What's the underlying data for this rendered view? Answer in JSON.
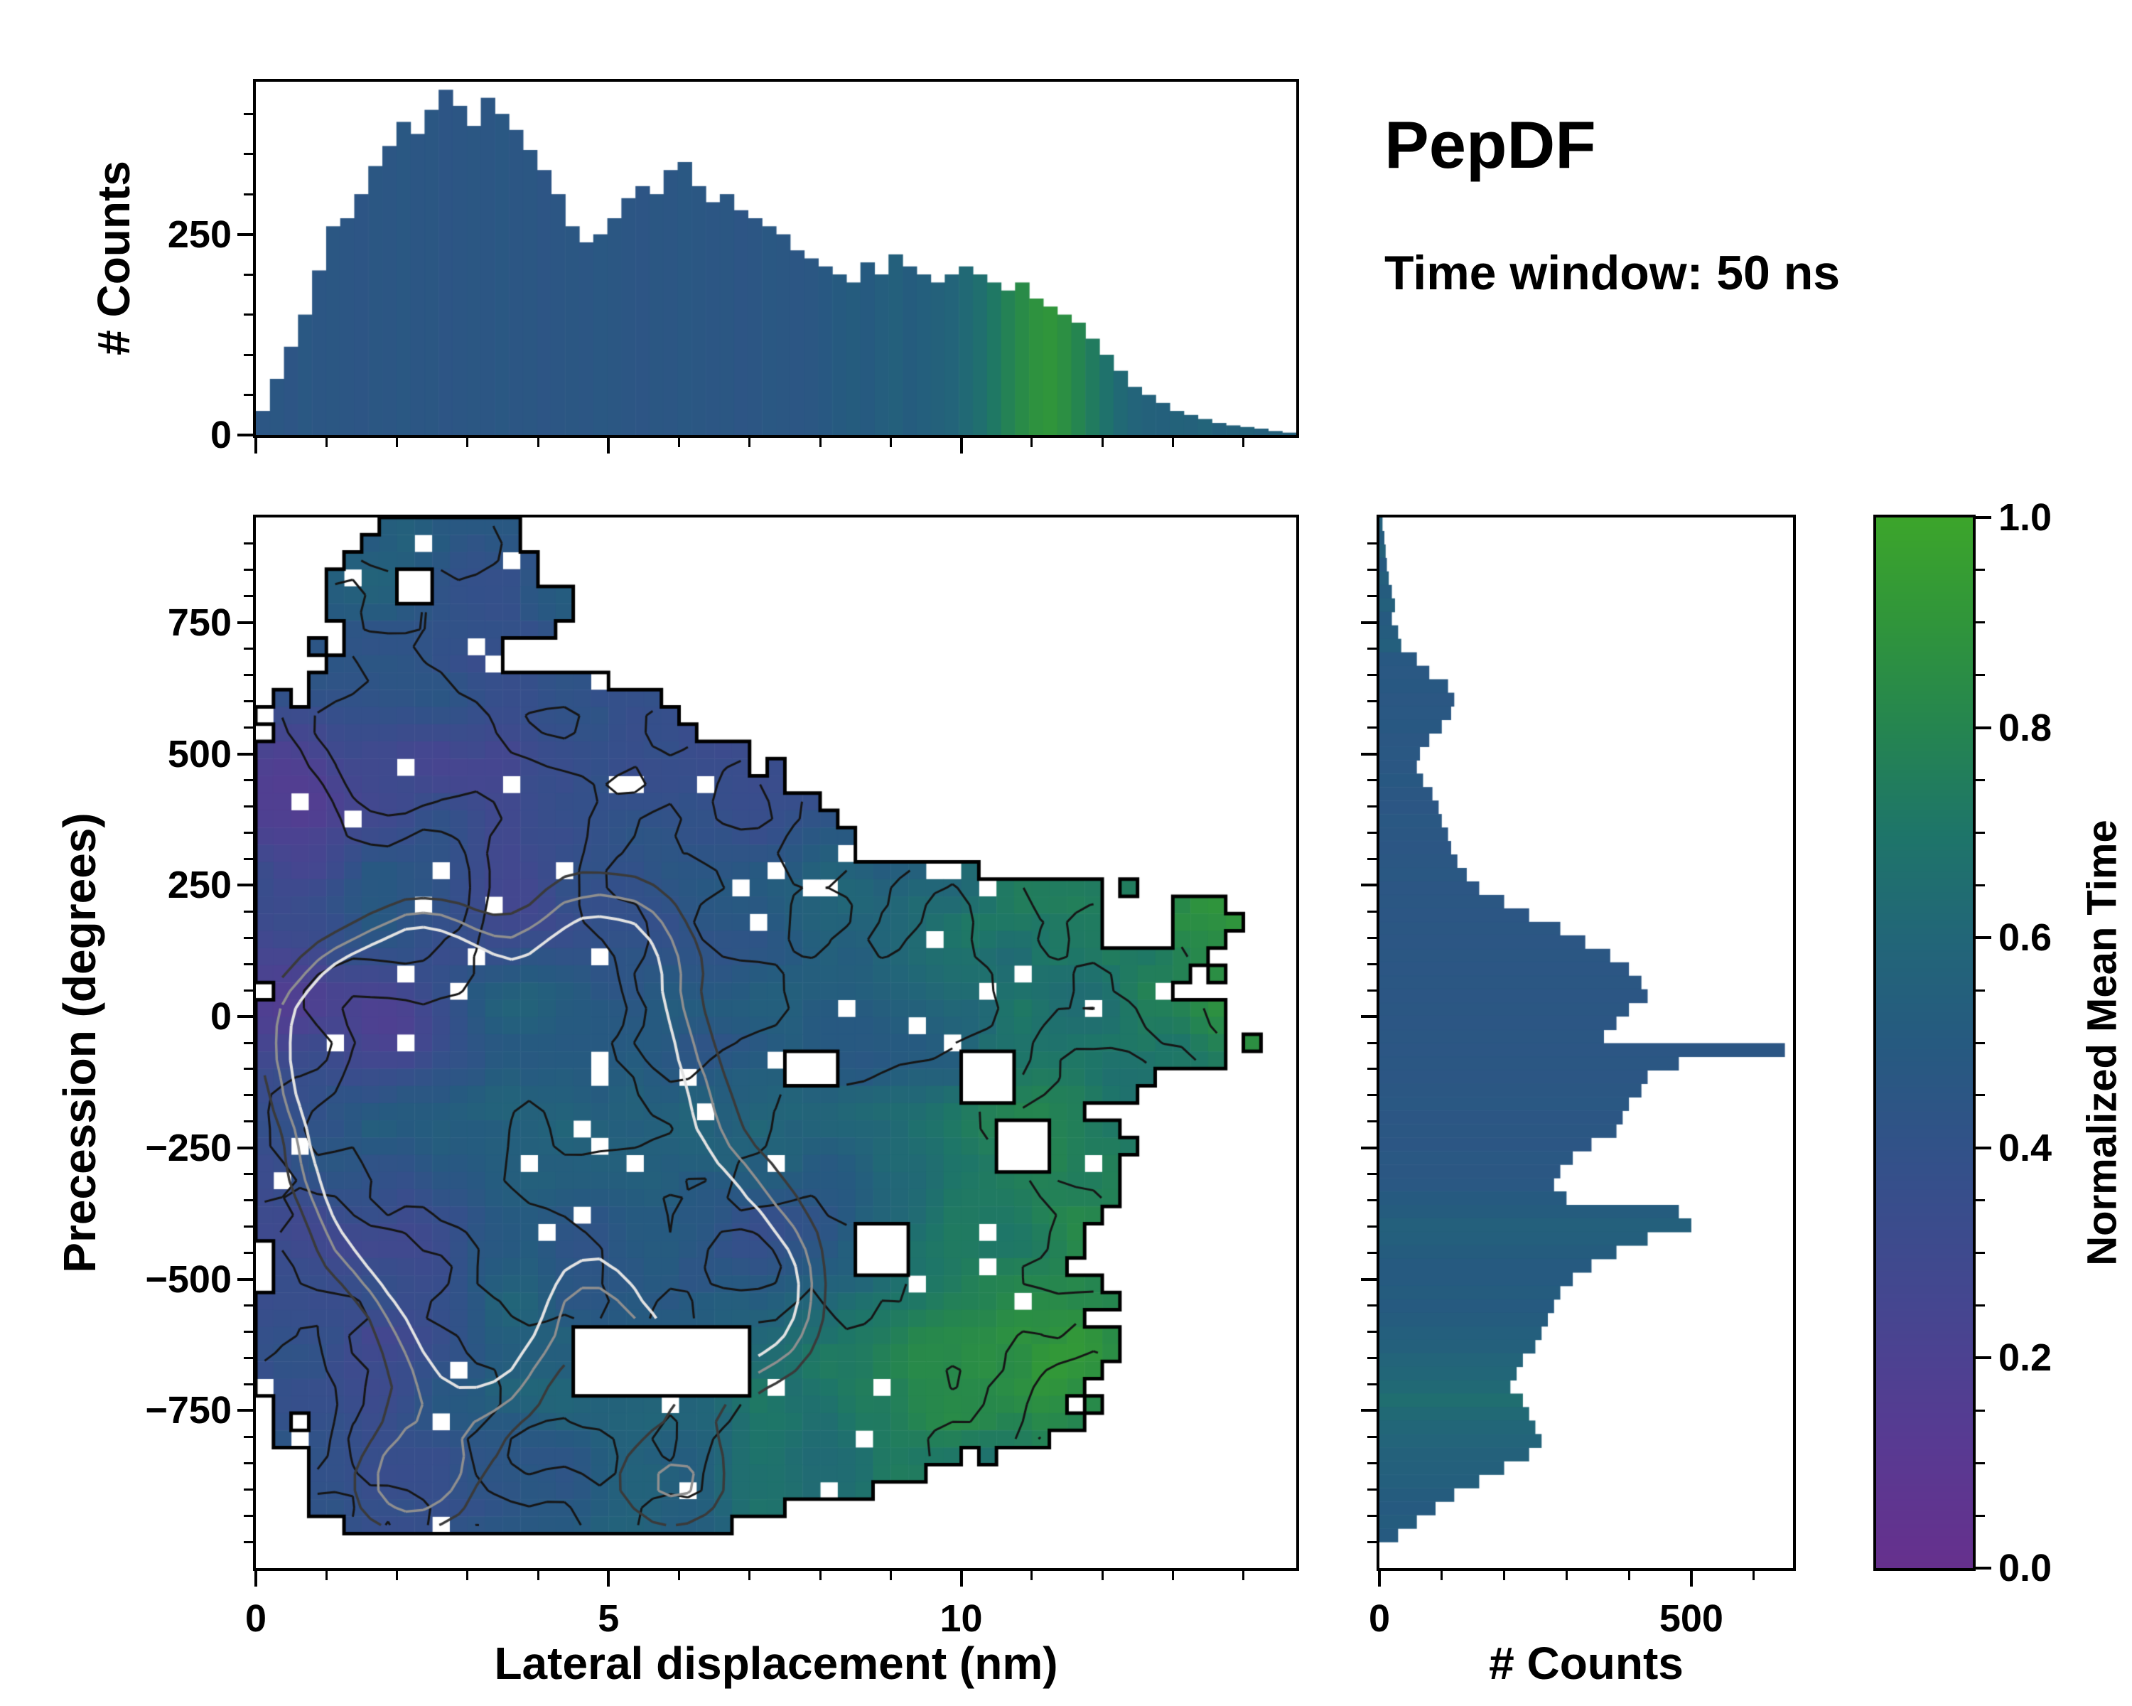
{
  "title": {
    "main": "PepDF",
    "subtitle": "Time window: 50 ns"
  },
  "colors": {
    "background": "#ffffff",
    "axis": "#000000",
    "colormap_stops": [
      {
        "t": 0.0,
        "color": "#66308d"
      },
      {
        "t": 0.12,
        "color": "#583a92"
      },
      {
        "t": 0.25,
        "color": "#454690"
      },
      {
        "t": 0.38,
        "color": "#34508a"
      },
      {
        "t": 0.5,
        "color": "#265a80"
      },
      {
        "t": 0.6,
        "color": "#226678"
      },
      {
        "t": 0.7,
        "color": "#1e7569"
      },
      {
        "t": 0.8,
        "color": "#258550"
      },
      {
        "t": 0.9,
        "color": "#30953b"
      },
      {
        "t": 1.0,
        "color": "#3ca52b"
      }
    ]
  },
  "chart_data": [
    {
      "id": "top_histogram",
      "type": "bar",
      "xlabel": "",
      "ylabel": "# Counts",
      "x_range": [
        0,
        14.75
      ],
      "y_range": [
        0,
        440
      ],
      "yticks": [
        0,
        250
      ],
      "y_minor_step": 50,
      "values": [
        30,
        70,
        110,
        150,
        205,
        260,
        270,
        300,
        335,
        360,
        390,
        375,
        405,
        430,
        410,
        385,
        420,
        400,
        380,
        355,
        330,
        300,
        260,
        240,
        250,
        270,
        295,
        310,
        300,
        330,
        340,
        310,
        290,
        300,
        280,
        270,
        260,
        250,
        230,
        220,
        210,
        200,
        190,
        215,
        200,
        225,
        210,
        200,
        190,
        200,
        210,
        200,
        190,
        180,
        190,
        170,
        160,
        150,
        140,
        120,
        100,
        80,
        60,
        50,
        40,
        30,
        25,
        20,
        15,
        12,
        10,
        8,
        5,
        3
      ],
      "color_values": [
        0.45,
        0.46,
        0.44,
        0.47,
        0.45,
        0.46,
        0.45,
        0.44,
        0.46,
        0.45,
        0.47,
        0.45,
        0.46,
        0.44,
        0.45,
        0.46,
        0.45,
        0.47,
        0.45,
        0.46,
        0.44,
        0.45,
        0.46,
        0.45,
        0.47,
        0.46,
        0.45,
        0.44,
        0.46,
        0.45,
        0.47,
        0.46,
        0.45,
        0.46,
        0.44,
        0.45,
        0.47,
        0.46,
        0.45,
        0.46,
        0.48,
        0.5,
        0.52,
        0.5,
        0.53,
        0.55,
        0.52,
        0.54,
        0.56,
        0.58,
        0.62,
        0.66,
        0.72,
        0.78,
        0.84,
        0.88,
        0.9,
        0.86,
        0.8,
        0.74,
        0.68,
        0.62,
        0.58,
        0.56,
        0.55,
        0.57,
        0.56,
        0.58,
        0.55,
        0.56,
        0.57,
        0.55,
        0.56,
        0.55
      ]
    },
    {
      "id": "main_heatmap",
      "type": "heatmap",
      "xlabel": "Lateral displacement (nm)",
      "ylabel": "Precession (degrees)",
      "color_field": "normalized_mean_time",
      "x_range": [
        0,
        14.75
      ],
      "y_range": [
        -1050,
        950
      ],
      "xticks": [
        0,
        5,
        10
      ],
      "x_minor_step": 1,
      "yticks": [
        750,
        500,
        250,
        0,
        -250,
        -500,
        -750
      ],
      "y_minor_step": 50,
      "grid": [
        59,
        61
      ],
      "region_rows": [
        [
          950,
          1.8,
          3.3
        ],
        [
          900,
          1.2,
          3.7
        ],
        [
          850,
          1.0,
          4.0
        ],
        [
          800,
          1.0,
          4.4
        ],
        [
          750,
          1.0,
          4.7
        ],
        [
          700,
          0.8,
          4.1
        ],
        [
          650,
          0.6,
          5.0
        ],
        [
          600,
          0.3,
          6.2
        ],
        [
          550,
          0.1,
          6.6
        ],
        [
          500,
          0.0,
          7.0
        ],
        [
          450,
          0.0,
          7.5
        ],
        [
          400,
          0.0,
          8.3
        ],
        [
          350,
          0.0,
          8.8
        ],
        [
          300,
          0.0,
          9.6
        ],
        [
          250,
          0.0,
          12.0
        ],
        [
          200,
          0.0,
          14.7
        ],
        [
          150,
          0.0,
          14.7
        ],
        [
          100,
          0.0,
          13.4
        ],
        [
          50,
          0.0,
          13.0
        ],
        [
          0,
          0.0,
          13.8
        ],
        [
          -50,
          0.0,
          14.0
        ],
        [
          -100,
          0.0,
          13.2
        ],
        [
          -150,
          0.0,
          12.6
        ],
        [
          -200,
          0.0,
          12.4
        ],
        [
          -250,
          0.0,
          12.8
        ],
        [
          -300,
          0.0,
          13.0
        ],
        [
          -350,
          0.0,
          12.6
        ],
        [
          -400,
          0.0,
          12.2
        ],
        [
          -450,
          0.0,
          12.0
        ],
        [
          -500,
          0.0,
          11.8
        ],
        [
          -550,
          0.0,
          12.2
        ],
        [
          -600,
          0.0,
          12.6
        ],
        [
          -650,
          0.0,
          12.4
        ],
        [
          -700,
          0.0,
          12.0
        ],
        [
          -750,
          0.3,
          11.6
        ],
        [
          -800,
          0.4,
          10.8
        ],
        [
          -850,
          0.5,
          10.2
        ],
        [
          -900,
          0.6,
          9.0
        ],
        [
          -950,
          0.8,
          7.6
        ],
        [
          -1000,
          1.0,
          5.0
        ]
      ],
      "holes": [
        [
          4.6,
          7.0,
          -710,
          -580
        ],
        [
          9.9,
          10.7,
          -170,
          -60
        ],
        [
          12.1,
          12.9,
          140,
          230
        ],
        [
          3.4,
          4.2,
          640,
          710
        ],
        [
          7.5,
          8.2,
          -130,
          -50
        ],
        [
          10.4,
          11.2,
          -300,
          -210
        ],
        [
          2.0,
          2.4,
          780,
          860
        ],
        [
          8.6,
          9.2,
          -480,
          -400
        ]
      ],
      "scatter_hole_rate": 0.035,
      "value_model": {
        "base": 0.17,
        "x_coef": 0.33,
        "y_coef": 0.3,
        "top_bonus": 0.32,
        "right_bonus": 0.28,
        "noise_amp": 0.24,
        "seed": 7
      },
      "contour_centers": [
        [
          1.4,
          -40,
          0.9,
          130,
          1.05
        ],
        [
          2.3,
          -160,
          1.0,
          150,
          1.1
        ],
        [
          1.9,
          -330,
          0.85,
          120,
          0.95
        ],
        [
          3.1,
          -430,
          0.9,
          130,
          0.95
        ],
        [
          3.6,
          -150,
          0.8,
          110,
          0.85
        ],
        [
          5.0,
          130,
          0.9,
          120,
          0.85
        ],
        [
          6.3,
          -460,
          1.0,
          140,
          0.95
        ],
        [
          6.9,
          -560,
          0.8,
          110,
          0.8
        ],
        [
          2.6,
          60,
          0.8,
          110,
          0.85
        ],
        [
          3.2,
          -620,
          0.9,
          120,
          0.8
        ],
        [
          2.2,
          -890,
          0.8,
          100,
          0.75
        ],
        [
          5.6,
          -180,
          0.9,
          130,
          0.8
        ],
        [
          4.4,
          -300,
          0.8,
          110,
          0.8
        ],
        [
          6.0,
          -880,
          0.8,
          100,
          0.7
        ],
        [
          4.7,
          -40,
          0.8,
          110,
          0.75
        ]
      ],
      "gray_contours": {
        "levels": [
          0.45,
          0.65,
          0.85
        ],
        "colors": [
          "#3a3a3a",
          "#8f8f8f",
          "#e2e2e2"
        ]
      },
      "black_contours": {
        "levels": [
          0.44,
          0.6
        ],
        "colors": [
          "#161616",
          "#161616"
        ]
      },
      "outliers": []
    },
    {
      "id": "right_histogram",
      "type": "barh",
      "xlabel": "# Counts",
      "ylabel": "",
      "x_range": [
        0,
        663
      ],
      "xticks": [
        0,
        500
      ],
      "x_minor_step": 100,
      "y_start": 950,
      "y_end": -1000,
      "values": [
        5,
        8,
        10,
        12,
        15,
        20,
        25,
        20,
        30,
        35,
        60,
        80,
        110,
        120,
        115,
        100,
        80,
        65,
        60,
        70,
        85,
        95,
        100,
        110,
        115,
        125,
        140,
        160,
        200,
        240,
        290,
        330,
        370,
        400,
        420,
        430,
        400,
        380,
        360,
        650,
        480,
        430,
        420,
        400,
        390,
        380,
        340,
        310,
        290,
        280,
        300,
        480,
        500,
        430,
        380,
        340,
        310,
        290,
        280,
        270,
        260,
        250,
        230,
        220,
        210,
        230,
        240,
        250,
        260,
        240,
        200,
        160,
        120,
        90,
        60,
        30
      ],
      "color_values": [
        0.55,
        0.52,
        0.56,
        0.5,
        0.54,
        0.52,
        0.55,
        0.5,
        0.52,
        0.54,
        0.48,
        0.47,
        0.48,
        0.46,
        0.47,
        0.48,
        0.46,
        0.47,
        0.46,
        0.48,
        0.46,
        0.45,
        0.47,
        0.46,
        0.45,
        0.46,
        0.47,
        0.45,
        0.46,
        0.45,
        0.46,
        0.45,
        0.46,
        0.45,
        0.46,
        0.45,
        0.46,
        0.45,
        0.46,
        0.45,
        0.46,
        0.45,
        0.46,
        0.47,
        0.45,
        0.46,
        0.45,
        0.47,
        0.46,
        0.47,
        0.5,
        0.52,
        0.55,
        0.54,
        0.52,
        0.5,
        0.5,
        0.52,
        0.5,
        0.52,
        0.54,
        0.55,
        0.58,
        0.6,
        0.62,
        0.65,
        0.62,
        0.6,
        0.58,
        0.56,
        0.55,
        0.54,
        0.52,
        0.5,
        0.52,
        0.5
      ]
    },
    {
      "id": "colorbar",
      "type": "colorbar",
      "label": "Normalized Mean Time",
      "range": [
        0,
        1
      ],
      "ticks": [
        0,
        0.2,
        0.4,
        0.6,
        0.8,
        1
      ],
      "minor_step": 0.05
    }
  ]
}
